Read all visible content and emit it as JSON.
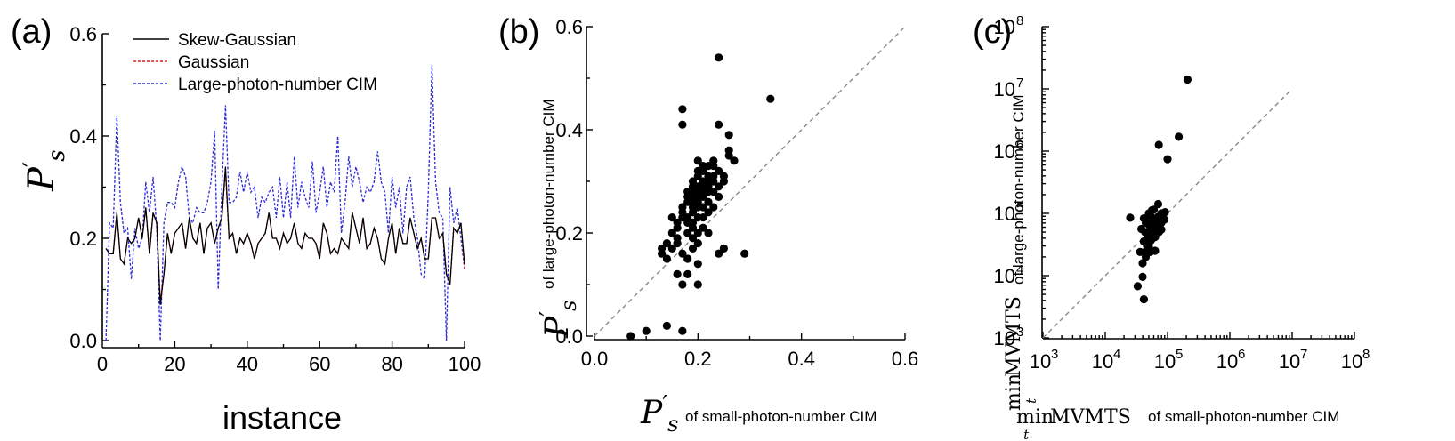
{
  "chart_data": [
    {
      "panel": "(a)",
      "type": "line",
      "xlabel": "instance",
      "ylabel": "P's",
      "xlim": [
        0,
        100
      ],
      "ylim": [
        0,
        0.6
      ],
      "xticks": [
        "0",
        "20",
        "40",
        "60",
        "80",
        "100"
      ],
      "yticks": [
        "0.0",
        "0.2",
        "0.4",
        "0.6"
      ],
      "legend": [
        "Skew-Gaussian",
        "Gaussian",
        "Large-photon-number CIM"
      ],
      "x": [
        1,
        2,
        3,
        4,
        5,
        6,
        7,
        8,
        9,
        10,
        11,
        12,
        13,
        14,
        15,
        16,
        17,
        18,
        19,
        20,
        21,
        22,
        23,
        24,
        25,
        26,
        27,
        28,
        29,
        30,
        31,
        32,
        33,
        34,
        35,
        36,
        37,
        38,
        39,
        40,
        41,
        42,
        43,
        44,
        45,
        46,
        47,
        48,
        49,
        50,
        51,
        52,
        53,
        54,
        55,
        56,
        57,
        58,
        59,
        60,
        61,
        62,
        63,
        64,
        65,
        66,
        67,
        68,
        69,
        70,
        71,
        72,
        73,
        74,
        75,
        76,
        77,
        78,
        79,
        80,
        81,
        82,
        83,
        84,
        85,
        86,
        87,
        88,
        89,
        90,
        91,
        92,
        93,
        94,
        95,
        96,
        97,
        98,
        99,
        100
      ],
      "series": [
        {
          "name": "Skew-Gaussian",
          "color": "#000000",
          "values": [
            0.18,
            0.17,
            0.17,
            0.25,
            0.16,
            0.15,
            0.2,
            0.19,
            0.2,
            0.24,
            0.2,
            0.26,
            0.17,
            0.25,
            0.23,
            0.07,
            0.13,
            0.21,
            0.17,
            0.21,
            0.22,
            0.23,
            0.18,
            0.24,
            0.2,
            0.19,
            0.23,
            0.17,
            0.22,
            0.23,
            0.19,
            0.22,
            0.24,
            0.34,
            0.2,
            0.21,
            0.17,
            0.2,
            0.19,
            0.21,
            0.19,
            0.16,
            0.19,
            0.2,
            0.21,
            0.25,
            0.2,
            0.2,
            0.18,
            0.21,
            0.19,
            0.2,
            0.23,
            0.19,
            0.18,
            0.21,
            0.2,
            0.2,
            0.19,
            0.16,
            0.23,
            0.21,
            0.17,
            0.18,
            0.17,
            0.2,
            0.19,
            0.18,
            0.25,
            0.22,
            0.19,
            0.24,
            0.18,
            0.19,
            0.22,
            0.2,
            0.16,
            0.15,
            0.2,
            0.23,
            0.17,
            0.22,
            0.19,
            0.19,
            0.24,
            0.21,
            0.18,
            0.2,
            0.16,
            0.16,
            0.24,
            0.24,
            0.2,
            0.21,
            0.13,
            0.11,
            0.22,
            0.21,
            0.23,
            0.15
          ]
        },
        {
          "name": "Gaussian",
          "color": "#e41a1c",
          "values": [
            0.18,
            0.17,
            0.17,
            0.25,
            0.16,
            0.15,
            0.2,
            0.19,
            0.2,
            0.24,
            0.2,
            0.26,
            0.17,
            0.25,
            0.23,
            0.08,
            0.13,
            0.21,
            0.17,
            0.21,
            0.22,
            0.23,
            0.18,
            0.24,
            0.2,
            0.19,
            0.23,
            0.17,
            0.22,
            0.23,
            0.19,
            0.22,
            0.24,
            0.33,
            0.2,
            0.21,
            0.17,
            0.2,
            0.19,
            0.21,
            0.19,
            0.16,
            0.19,
            0.2,
            0.21,
            0.25,
            0.2,
            0.2,
            0.18,
            0.21,
            0.19,
            0.2,
            0.23,
            0.19,
            0.18,
            0.21,
            0.2,
            0.2,
            0.19,
            0.16,
            0.23,
            0.21,
            0.17,
            0.18,
            0.17,
            0.2,
            0.19,
            0.18,
            0.25,
            0.22,
            0.19,
            0.24,
            0.18,
            0.19,
            0.22,
            0.2,
            0.16,
            0.15,
            0.2,
            0.23,
            0.17,
            0.22,
            0.19,
            0.19,
            0.24,
            0.21,
            0.18,
            0.2,
            0.16,
            0.16,
            0.24,
            0.24,
            0.2,
            0.21,
            0.13,
            0.11,
            0.22,
            0.21,
            0.23,
            0.14
          ]
        },
        {
          "name": "Large-photon-number CIM",
          "color": "#2b2bd9",
          "values": [
            0.0,
            0.23,
            0.22,
            0.44,
            0.27,
            0.21,
            0.22,
            0.12,
            0.22,
            0.18,
            0.2,
            0.31,
            0.25,
            0.32,
            0.22,
            0.0,
            0.23,
            0.27,
            0.27,
            0.26,
            0.31,
            0.34,
            0.32,
            0.24,
            0.23,
            0.26,
            0.25,
            0.25,
            0.27,
            0.31,
            0.41,
            0.1,
            0.3,
            0.46,
            0.27,
            0.27,
            0.28,
            0.33,
            0.29,
            0.33,
            0.29,
            0.3,
            0.24,
            0.28,
            0.27,
            0.29,
            0.3,
            0.24,
            0.32,
            0.24,
            0.31,
            0.24,
            0.36,
            0.26,
            0.31,
            0.28,
            0.26,
            0.35,
            0.25,
            0.29,
            0.34,
            0.26,
            0.31,
            0.29,
            0.4,
            0.21,
            0.27,
            0.36,
            0.3,
            0.34,
            0.31,
            0.27,
            0.3,
            0.29,
            0.31,
            0.37,
            0.31,
            0.29,
            0.21,
            0.32,
            0.26,
            0.3,
            0.21,
            0.3,
            0.32,
            0.24,
            0.2,
            0.13,
            0.12,
            0.29,
            0.54,
            0.31,
            0.25,
            0.24,
            0.0,
            0.3,
            0.23,
            0.26,
            0.2,
            0.14
          ]
        }
      ]
    },
    {
      "panel": "(b)",
      "type": "scatter",
      "xlabel_math": "P's",
      "xlabel_text": "of small-photon-number CIM",
      "ylabel_math": "P's",
      "ylabel_text": "of large-photon-number CIM",
      "xlim": [
        0,
        0.6
      ],
      "ylim": [
        0,
        0.6
      ],
      "xticks": [
        "0.0",
        "0.2",
        "0.4",
        "0.6"
      ],
      "yticks": [
        "0.0",
        "0.2",
        "0.4",
        "0.6"
      ],
      "diagonal": true,
      "points": [
        [
          0.07,
          0.0
        ],
        [
          0.1,
          0.01
        ],
        [
          0.14,
          0.02
        ],
        [
          0.17,
          0.01
        ],
        [
          0.13,
          0.17
        ],
        [
          0.13,
          0.16
        ],
        [
          0.14,
          0.15
        ],
        [
          0.14,
          0.18
        ],
        [
          0.15,
          0.17
        ],
        [
          0.15,
          0.2
        ],
        [
          0.16,
          0.18
        ],
        [
          0.16,
          0.19
        ],
        [
          0.16,
          0.21
        ],
        [
          0.16,
          0.22
        ],
        [
          0.16,
          0.12
        ],
        [
          0.17,
          0.1
        ],
        [
          0.17,
          0.23
        ],
        [
          0.17,
          0.25
        ],
        [
          0.17,
          0.24
        ],
        [
          0.17,
          0.44
        ],
        [
          0.17,
          0.41
        ],
        [
          0.18,
          0.27
        ],
        [
          0.18,
          0.26
        ],
        [
          0.18,
          0.28
        ],
        [
          0.18,
          0.23
        ],
        [
          0.18,
          0.22
        ],
        [
          0.18,
          0.2
        ],
        [
          0.18,
          0.15
        ],
        [
          0.18,
          0.12
        ],
        [
          0.19,
          0.29
        ],
        [
          0.19,
          0.27
        ],
        [
          0.19,
          0.28
        ],
        [
          0.19,
          0.26
        ],
        [
          0.19,
          0.24
        ],
        [
          0.19,
          0.22
        ],
        [
          0.19,
          0.21
        ],
        [
          0.19,
          0.19
        ],
        [
          0.19,
          0.17
        ],
        [
          0.19,
          0.3
        ],
        [
          0.2,
          0.31
        ],
        [
          0.2,
          0.29
        ],
        [
          0.2,
          0.28
        ],
        [
          0.2,
          0.27
        ],
        [
          0.2,
          0.26
        ],
        [
          0.2,
          0.25
        ],
        [
          0.2,
          0.23
        ],
        [
          0.2,
          0.2
        ],
        [
          0.2,
          0.18
        ],
        [
          0.2,
          0.14
        ],
        [
          0.2,
          0.1
        ],
        [
          0.2,
          0.32
        ],
        [
          0.2,
          0.34
        ],
        [
          0.21,
          0.3
        ],
        [
          0.21,
          0.29
        ],
        [
          0.21,
          0.28
        ],
        [
          0.21,
          0.27
        ],
        [
          0.21,
          0.33
        ],
        [
          0.21,
          0.25
        ],
        [
          0.21,
          0.23
        ],
        [
          0.21,
          0.21
        ],
        [
          0.22,
          0.31
        ],
        [
          0.22,
          0.3
        ],
        [
          0.22,
          0.28
        ],
        [
          0.22,
          0.33
        ],
        [
          0.22,
          0.29
        ],
        [
          0.22,
          0.26
        ],
        [
          0.22,
          0.24
        ],
        [
          0.22,
          0.2
        ],
        [
          0.23,
          0.33
        ],
        [
          0.23,
          0.3
        ],
        [
          0.23,
          0.28
        ],
        [
          0.23,
          0.25
        ],
        [
          0.23,
          0.31
        ],
        [
          0.24,
          0.32
        ],
        [
          0.24,
          0.29
        ],
        [
          0.24,
          0.27
        ],
        [
          0.24,
          0.41
        ],
        [
          0.24,
          0.54
        ],
        [
          0.25,
          0.31
        ],
        [
          0.25,
          0.3
        ],
        [
          0.25,
          0.17
        ],
        [
          0.24,
          0.16
        ],
        [
          0.26,
          0.36
        ],
        [
          0.26,
          0.39
        ],
        [
          0.26,
          0.35
        ],
        [
          0.27,
          0.34
        ],
        [
          0.29,
          0.16
        ],
        [
          0.34,
          0.46
        ],
        [
          0.17,
          0.16
        ],
        [
          0.15,
          0.23
        ],
        [
          0.21,
          0.32
        ],
        [
          0.23,
          0.34
        ],
        [
          0.19,
          0.25
        ]
      ]
    },
    {
      "panel": "(c)",
      "type": "scatter",
      "xscale": "log",
      "yscale": "log",
      "xlabel_math": "min_t MVMTS",
      "xlabel_text": "of small-photon-number CIM",
      "ylabel_math": "min_t MVMTS",
      "ylabel_text": "of large-photon-number CIM",
      "xlim_exp": [
        3,
        8
      ],
      "ylim_exp": [
        3,
        8
      ],
      "xticks": [
        [
          "10",
          "3"
        ],
        [
          "10",
          "4"
        ],
        [
          "10",
          "5"
        ],
        [
          "10",
          "6"
        ],
        [
          "10",
          "7"
        ],
        [
          "10",
          "8"
        ]
      ],
      "yticks": [
        [
          "10",
          "3"
        ],
        [
          "10",
          "4"
        ],
        [
          "10",
          "5"
        ],
        [
          "10",
          "6"
        ],
        [
          "10",
          "7"
        ],
        [
          "10",
          "8"
        ]
      ],
      "diagonal_exp": [
        3,
        7
      ],
      "points_log10": [
        [
          5.32,
          7.15
        ],
        [
          5.18,
          6.23
        ],
        [
          4.86,
          6.1
        ],
        [
          5.0,
          5.87
        ],
        [
          4.4,
          4.93
        ],
        [
          4.62,
          3.62
        ],
        [
          4.6,
          3.98
        ],
        [
          4.52,
          3.83
        ],
        [
          4.67,
          4.48
        ],
        [
          4.7,
          4.7
        ],
        [
          4.76,
          4.6
        ],
        [
          4.82,
          4.73
        ],
        [
          4.86,
          4.7
        ],
        [
          4.73,
          4.95
        ],
        [
          4.77,
          4.85
        ],
        [
          4.7,
          4.47
        ],
        [
          4.8,
          4.4
        ],
        [
          4.72,
          4.38
        ],
        [
          4.65,
          4.3
        ],
        [
          4.6,
          4.2
        ],
        [
          4.65,
          4.85
        ],
        [
          4.7,
          5.0
        ],
        [
          4.75,
          5.05
        ],
        [
          4.8,
          4.9
        ],
        [
          4.85,
          4.8
        ],
        [
          4.9,
          4.85
        ],
        [
          4.95,
          4.9
        ],
        [
          4.74,
          4.76
        ],
        [
          4.68,
          4.62
        ],
        [
          4.62,
          4.55
        ],
        [
          4.78,
          4.68
        ],
        [
          4.9,
          5.0
        ],
        [
          4.62,
          4.92
        ],
        [
          4.56,
          4.38
        ],
        [
          4.85,
          5.15
        ],
        [
          4.7,
          4.82
        ],
        [
          4.78,
          5.06
        ],
        [
          4.83,
          4.88
        ],
        [
          4.9,
          4.74
        ],
        [
          4.68,
          4.7
        ],
        [
          4.8,
          4.62
        ],
        [
          4.88,
          4.9
        ],
        [
          4.73,
          4.56
        ],
        [
          4.66,
          4.4
        ],
        [
          4.84,
          4.94
        ],
        [
          4.58,
          4.75
        ],
        [
          4.64,
          4.7
        ],
        [
          4.92,
          4.96
        ],
        [
          4.96,
          5.02
        ],
        [
          4.82,
          4.7
        ],
        [
          4.87,
          4.8
        ],
        [
          4.74,
          4.66
        ]
      ]
    }
  ],
  "labels": {
    "panel_a": "(a)",
    "panel_b": "(b)",
    "panel_c": "(c)",
    "a_ylabel_P": "P",
    "a_ylabel_prime": "′",
    "a_ylabel_s": "s",
    "a_xlabel": "instance",
    "b_xlabel_P": "P",
    "b_xlabel_prime": "′",
    "b_xlabel_s": "s",
    "b_xlabel_text": "of small-photon-number CIM",
    "b_ylabel_P": "P",
    "b_ylabel_prime": "′",
    "b_ylabel_s": "s",
    "b_ylabel_text": "of large-photon-number CIM",
    "c_xlabel_min": "min",
    "c_xlabel_t": "t",
    "c_xlabel_mv": "MVMTS",
    "c_xlabel_text": "of small-photon-number CIM",
    "c_ylabel_min": "min",
    "c_ylabel_t": "t",
    "c_ylabel_mv": "MVMTS",
    "c_ylabel_text": "of large-photon-number CIM"
  }
}
